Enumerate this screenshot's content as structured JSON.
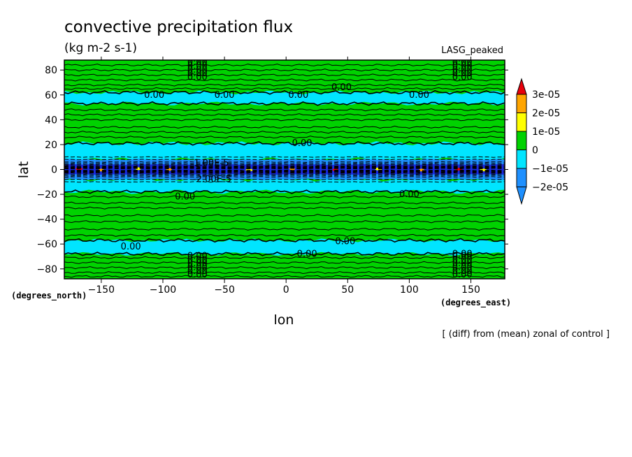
{
  "chart_data": {
    "type": "heatmap",
    "title": "convective precipitation flux",
    "subtitle": "(kg m-2 s-1)",
    "experiment": "LASG_peaked",
    "xlabel": "lon",
    "ylabel": "lat",
    "x_unit": "(degrees_east)",
    "y_unit": "(degrees_north)",
    "footnote": "[ (diff) from (mean) zonal of control ]",
    "xlim": [
      -180,
      177.5
    ],
    "ylim": [
      -88,
      88
    ],
    "x_ticks": [
      -150,
      -100,
      -50,
      0,
      50,
      100,
      150
    ],
    "x_tick_labels": [
      "−150",
      "−100",
      "−50",
      "0",
      "50",
      "100",
      "150"
    ],
    "y_ticks": [
      -80,
      -60,
      -40,
      -20,
      0,
      20,
      40,
      60,
      80
    ],
    "y_tick_labels": [
      "−80",
      "−60",
      "−40",
      "−20",
      "0",
      "20",
      "40",
      "60",
      "80"
    ],
    "colorbar": {
      "levels": [
        -2e-05,
        -1e-05,
        0,
        1e-05,
        2e-05,
        3e-05
      ],
      "labels": [
        "−2e-05",
        "−1e-05",
        "0",
        "1e-05",
        "2e-05",
        "3e-05"
      ],
      "colors": [
        "#1e90ff",
        "#00e5ff",
        "#00d200",
        "#ffff00",
        "#ffa500",
        "#e8000b"
      ],
      "under_color": "#1e90ff",
      "over_color": "#e8000b"
    },
    "zonal_bands": [
      {
        "lat_min": 62,
        "lat_max": 88,
        "class": "0 to 1e-05"
      },
      {
        "lat_min": 53,
        "lat_max": 62,
        "class": "-1e-05 to 0"
      },
      {
        "lat_min": 21,
        "lat_max": 53,
        "class": "0 to 1e-05"
      },
      {
        "lat_min": 8,
        "lat_max": 21,
        "class": "-1e-05 to 0"
      },
      {
        "lat_min": 4,
        "lat_max": 8,
        "class": "-2e-05 to -1e-05"
      },
      {
        "lat_min": -4,
        "lat_max": 4,
        "class": "below -2e-05 with embedded positive cells"
      },
      {
        "lat_min": -8,
        "lat_max": -4,
        "class": "-2e-05 to -1e-05"
      },
      {
        "lat_min": -18,
        "lat_max": -8,
        "class": "-1e-05 to 0"
      },
      {
        "lat_min": -57,
        "lat_max": -18,
        "class": "0 to 1e-05"
      },
      {
        "lat_min": -68,
        "lat_max": -57,
        "class": "-1e-05 to 0"
      },
      {
        "lat_min": -88,
        "lat_max": -68,
        "class": "0 to 1e-05"
      }
    ],
    "contour_labels": [
      {
        "text": "0.00",
        "lon": -107,
        "lat": 60
      },
      {
        "text": "0.00",
        "lon": -50,
        "lat": 60
      },
      {
        "text": "0.00",
        "lon": 10,
        "lat": 60
      },
      {
        "text": "0.00",
        "lon": 45,
        "lat": 66
      },
      {
        "text": "0.00",
        "lon": 108,
        "lat": 60
      },
      {
        "text": "0.00",
        "lon": 13,
        "lat": 21
      },
      {
        "text": "0.00",
        "lon": -82,
        "lat": -22
      },
      {
        "text": "0.00",
        "lon": 100,
        "lat": -20
      },
      {
        "text": "0.00",
        "lon": 48,
        "lat": -58
      },
      {
        "text": "0.00",
        "lon": -126,
        "lat": -62
      },
      {
        "text": "0.00",
        "lon": 17,
        "lat": -68
      },
      {
        "text": "0.00",
        "lon": 143,
        "lat": -68
      },
      {
        "text": "-1.00E-5",
        "lon": -62,
        "lat": 5
      },
      {
        "text": "-2.00E-5",
        "lon": -60,
        "lat": -8
      }
    ]
  }
}
